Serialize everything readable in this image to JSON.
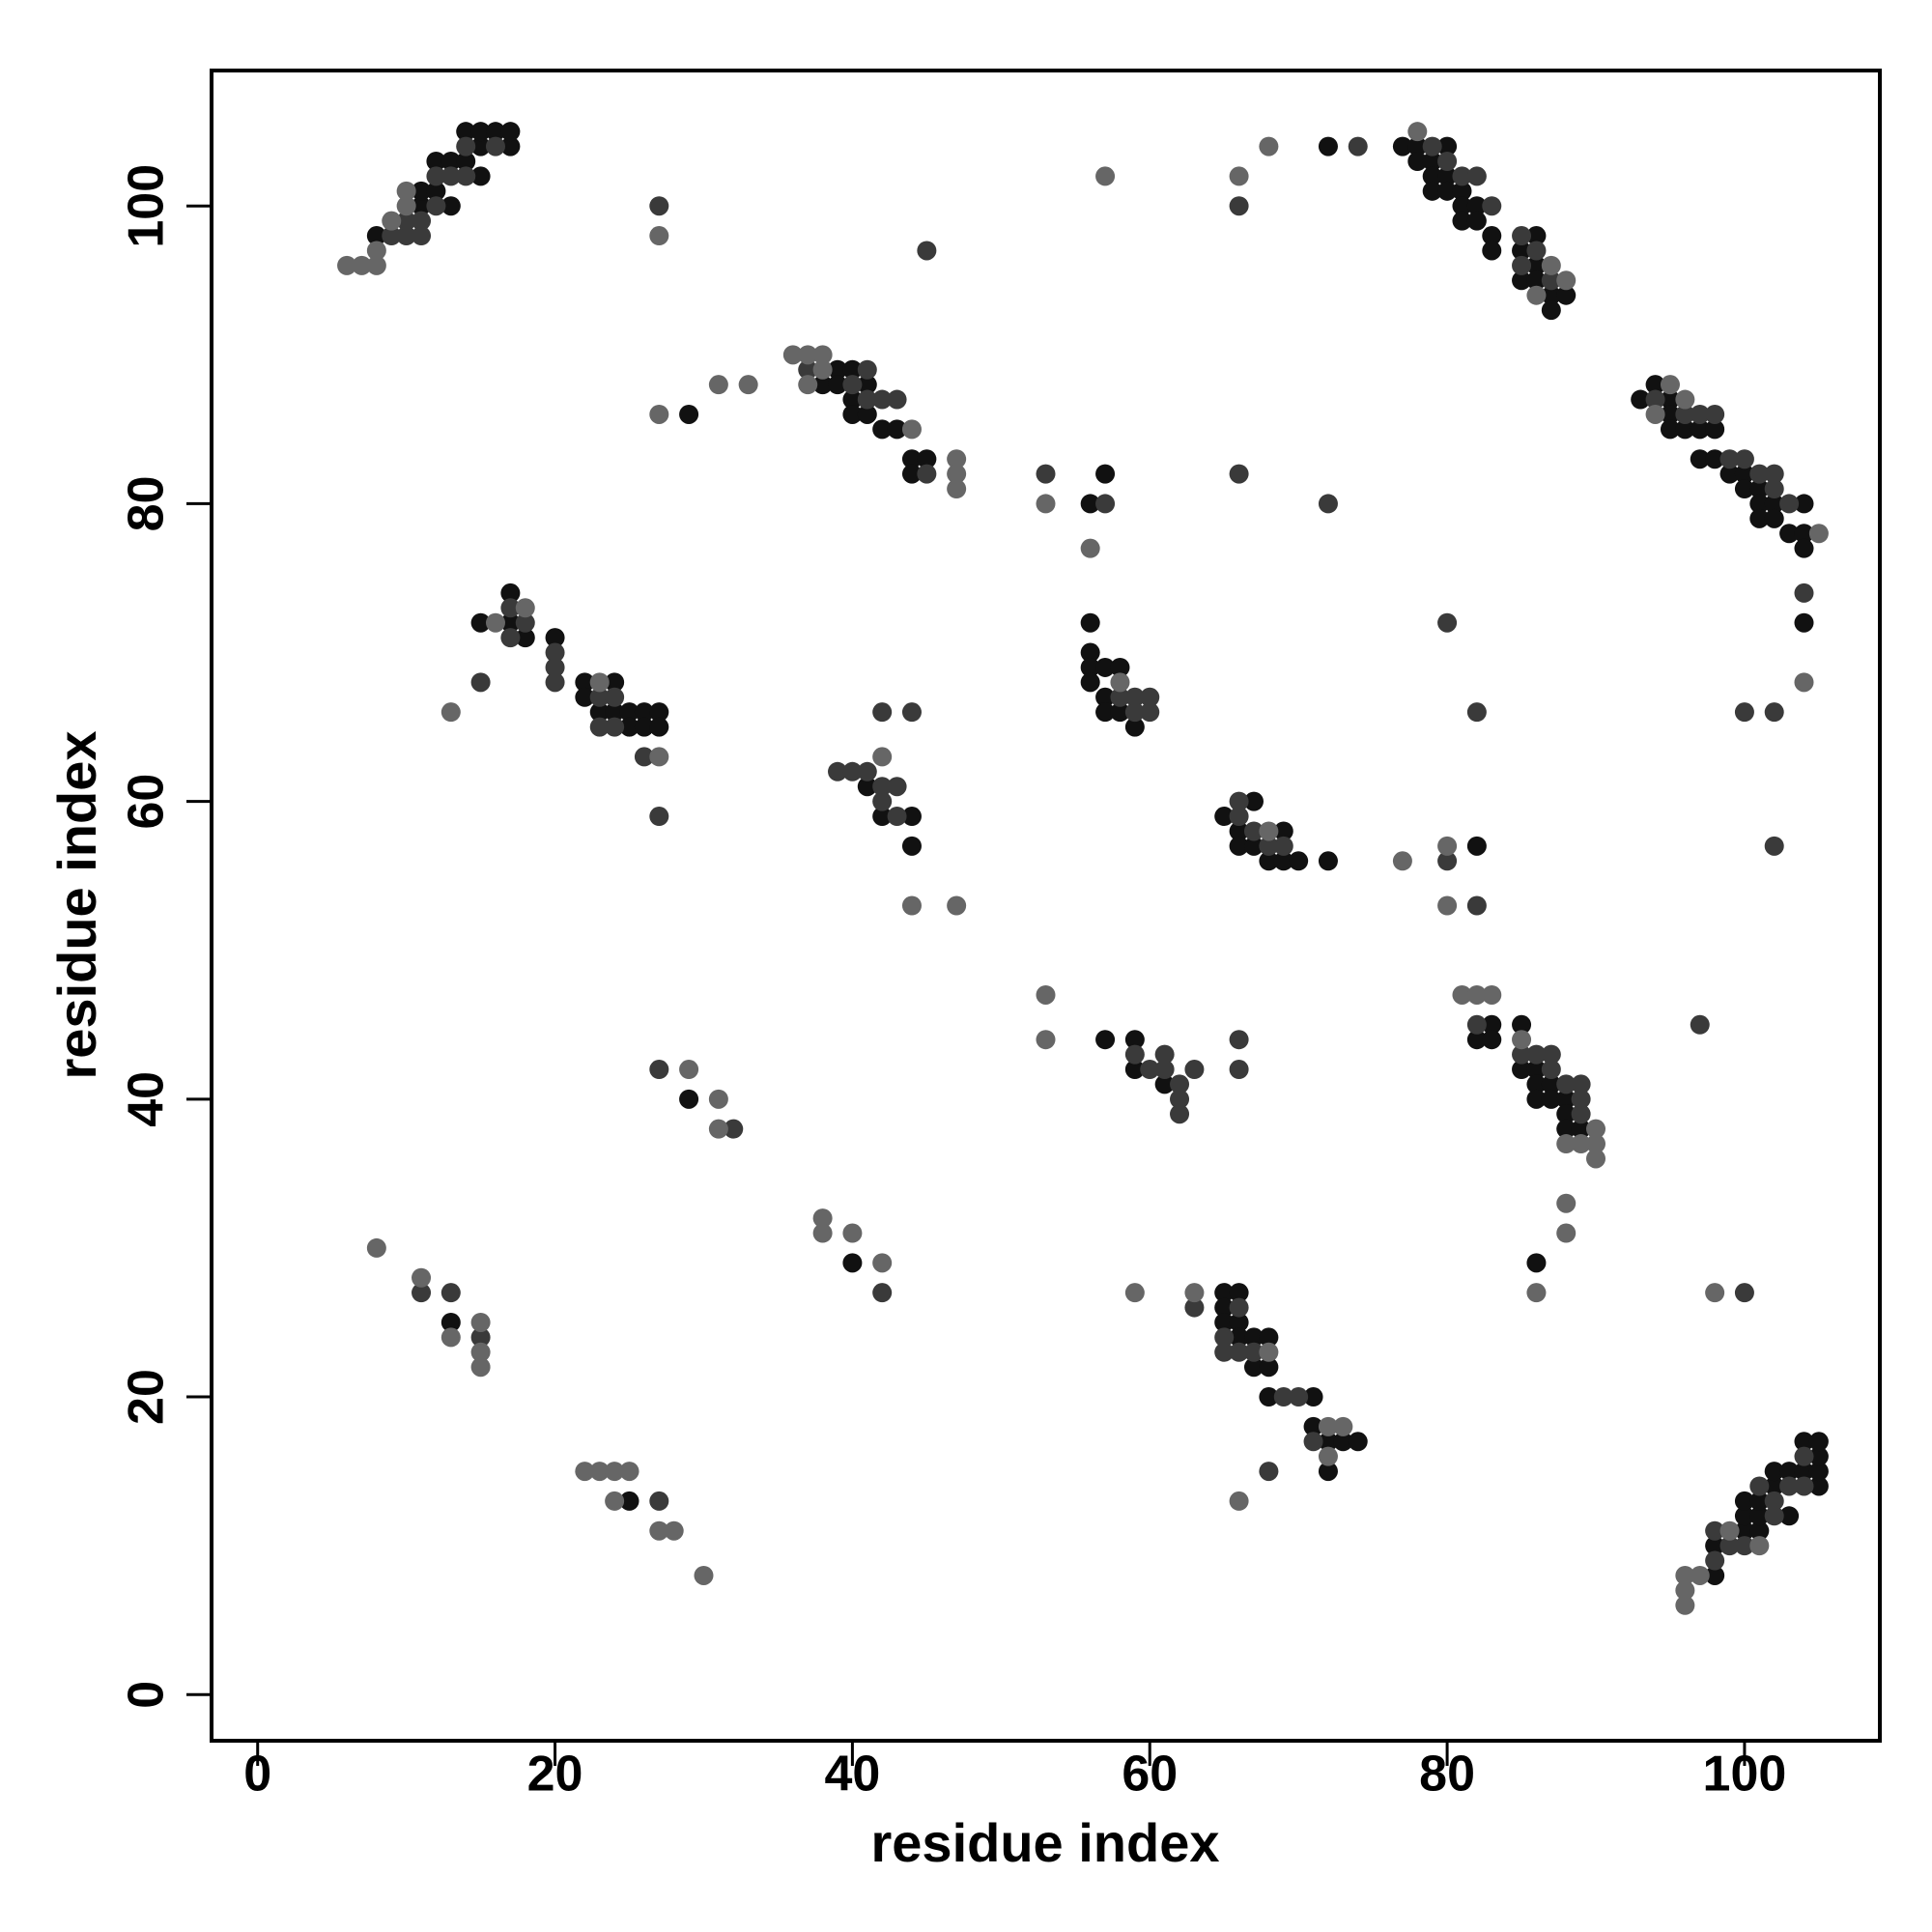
{
  "chart_data": {
    "type": "scatter",
    "xlabel": "residue index",
    "ylabel": "residue index",
    "xlim": [
      -3.1,
      109.1
    ],
    "ylim": [
      -3.1,
      109.1
    ],
    "xticks": [
      0,
      20,
      40,
      60,
      80,
      100
    ],
    "yticks": [
      0,
      20,
      40,
      60,
      80,
      100
    ],
    "series": [
      {
        "color": "#111111",
        "x": [
          8,
          11,
          13,
          11,
          12,
          15,
          12,
          13,
          14,
          15,
          17,
          14,
          15,
          16,
          17,
          72,
          77,
          78,
          78,
          79,
          80,
          79,
          80,
          79,
          80,
          81,
          81,
          82,
          81,
          82,
          83,
          86,
          83,
          85,
          86,
          85,
          86,
          87,
          88,
          87,
          39,
          40,
          38,
          39,
          41,
          40,
          40,
          41,
          42,
          43,
          44,
          45,
          44,
          29,
          93,
          95,
          94,
          95,
          95,
          96,
          97,
          98,
          97,
          98,
          99,
          100,
          100,
          101,
          101,
          102,
          104,
          101,
          102,
          103,
          104,
          104,
          56,
          57,
          104,
          17,
          15,
          17,
          18,
          20,
          22,
          24,
          22,
          23,
          24,
          25,
          26,
          27,
          25,
          26,
          27,
          41,
          42,
          44,
          44,
          56,
          56,
          56,
          57,
          58,
          56,
          57,
          57,
          58,
          59,
          65,
          67,
          66,
          69,
          66,
          67,
          68,
          69,
          70,
          72,
          82,
          57,
          59,
          59,
          61,
          83,
          85,
          82,
          83,
          85,
          86,
          86,
          87,
          86,
          87,
          88,
          88,
          88,
          89,
          86,
          29,
          40,
          13,
          25,
          65,
          66,
          65,
          65,
          66,
          66,
          67,
          68,
          67,
          68,
          68,
          71,
          71,
          72,
          73,
          74,
          72,
          98,
          98,
          100,
          101,
          100,
          101,
          103,
          100,
          101,
          102,
          105,
          102,
          103,
          104,
          105,
          105,
          104,
          105
        ],
        "y": [
          98,
          100,
          100,
          101,
          101,
          102,
          103,
          103,
          103,
          104,
          104,
          105,
          105,
          105,
          105,
          104,
          104,
          104,
          103,
          103,
          104,
          102,
          102,
          101,
          101,
          101,
          100,
          100,
          99,
          99,
          98,
          98,
          97,
          97,
          96,
          95,
          95,
          94,
          94,
          93,
          89,
          89,
          88,
          88,
          88,
          87,
          86,
          86,
          85,
          85,
          83,
          83,
          82,
          86,
          87,
          87,
          88,
          86,
          85,
          85,
          85,
          85,
          83,
          83,
          82,
          82,
          81,
          81,
          80,
          80,
          80,
          79,
          79,
          78,
          78,
          77,
          80,
          82,
          72,
          74,
          72,
          72,
          71,
          71,
          68,
          68,
          67,
          66,
          66,
          66,
          66,
          66,
          65,
          65,
          65,
          61,
          59,
          59,
          57,
          72,
          70,
          69,
          69,
          69,
          68,
          67,
          66,
          66,
          65,
          59,
          60,
          58,
          58,
          57,
          57,
          56,
          56,
          56,
          56,
          57,
          44,
          44,
          42,
          41,
          45,
          45,
          44,
          44,
          42,
          42,
          41,
          41,
          40,
          40,
          40,
          39,
          38,
          38,
          29,
          40,
          29,
          25,
          13,
          27,
          27,
          26,
          25,
          25,
          24,
          24,
          24,
          22,
          22,
          20,
          20,
          18,
          17,
          17,
          17,
          15,
          8,
          10,
          11,
          11,
          12,
          12,
          12,
          13,
          13,
          14,
          14,
          15,
          15,
          15,
          15,
          16,
          17,
          17
        ]
      },
      {
        "color": "#3a3a3a",
        "x": [
          9,
          10,
          11,
          10,
          11,
          12,
          12,
          13,
          14,
          14,
          16,
          27,
          45,
          66,
          74,
          79,
          80,
          81,
          82,
          83,
          85,
          86,
          85,
          87,
          37,
          41,
          40,
          41,
          42,
          43,
          45,
          94,
          96,
          97,
          98,
          99,
          100,
          101,
          102,
          102,
          103,
          53,
          57,
          66,
          72,
          104,
          80,
          82,
          100,
          102,
          102,
          17,
          18,
          17,
          20,
          20,
          15,
          20,
          23,
          24,
          23,
          24,
          26,
          27,
          42,
          44,
          39,
          40,
          41,
          42,
          43,
          42,
          43,
          58,
          59,
          60,
          59,
          60,
          66,
          66,
          67,
          68,
          69,
          80,
          82,
          59,
          60,
          61,
          61,
          62,
          62,
          62,
          63,
          66,
          66,
          82,
          85,
          86,
          87,
          87,
          88,
          89,
          89,
          89,
          97,
          100,
          27,
          32,
          42,
          11,
          13,
          15,
          27,
          63,
          66,
          65,
          65,
          66,
          67,
          69,
          70,
          71,
          68,
          98,
          98,
          99,
          100,
          102,
          102,
          101,
          103,
          104,
          104
        ],
        "y": [
          98,
          98,
          98,
          99,
          99,
          100,
          102,
          102,
          102,
          104,
          104,
          100,
          97,
          100,
          104,
          104,
          103,
          102,
          102,
          100,
          98,
          97,
          96,
          95,
          89,
          89,
          88,
          87,
          87,
          87,
          82,
          87,
          86,
          86,
          86,
          83,
          83,
          82,
          82,
          81,
          80,
          82,
          80,
          82,
          80,
          74,
          72,
          66,
          66,
          66,
          57,
          73,
          72,
          71,
          70,
          69,
          68,
          68,
          67,
          67,
          65,
          65,
          63,
          59,
          66,
          66,
          62,
          62,
          62,
          61,
          61,
          60,
          59,
          67,
          67,
          67,
          66,
          66,
          59,
          60,
          58,
          57,
          57,
          56,
          53,
          43,
          42,
          43,
          42,
          41,
          40,
          39,
          42,
          44,
          42,
          45,
          43,
          43,
          43,
          42,
          41,
          41,
          40,
          39,
          45,
          27,
          42,
          38,
          27,
          27,
          27,
          24,
          13,
          26,
          26,
          24,
          23,
          23,
          23,
          20,
          20,
          17,
          15,
          9,
          11,
          10,
          10,
          12,
          13,
          14,
          14,
          14,
          16
        ]
      },
      {
        "color": "#666666",
        "x": [
          6,
          7,
          8,
          8,
          9,
          10,
          10,
          27,
          57,
          66,
          68,
          78,
          87,
          88,
          86,
          36,
          37,
          38,
          38,
          37,
          44,
          47,
          47,
          47,
          27,
          31,
          33,
          95,
          94,
          96,
          105,
          53,
          56,
          104,
          18,
          16,
          13,
          23,
          27,
          42,
          44,
          47,
          58,
          68,
          77,
          80,
          80,
          53,
          53,
          81,
          82,
          83,
          85,
          90,
          88,
          89,
          90,
          90,
          88,
          88,
          86,
          98,
          29,
          31,
          31,
          38,
          38,
          40,
          42,
          8,
          11,
          13,
          15,
          15,
          15,
          22,
          23,
          24,
          25,
          24,
          27,
          28,
          30,
          59,
          63,
          68,
          72,
          73,
          72,
          66,
          96,
          97,
          96,
          96,
          99,
          101
        ],
        "y": [
          96,
          96,
          96,
          97,
          99,
          100,
          101,
          98,
          102,
          102,
          104,
          105,
          96,
          95,
          94,
          90,
          90,
          90,
          89,
          88,
          85,
          83,
          82,
          81,
          86,
          88,
          88,
          88,
          86,
          87,
          78,
          80,
          77,
          68,
          73,
          72,
          66,
          68,
          63,
          63,
          53,
          53,
          68,
          58,
          56,
          57,
          53,
          47,
          44,
          47,
          47,
          47,
          44,
          38,
          37,
          37,
          37,
          36,
          33,
          31,
          27,
          27,
          42,
          40,
          38,
          32,
          31,
          31,
          29,
          30,
          28,
          24,
          25,
          23,
          22,
          15,
          15,
          15,
          15,
          13,
          11,
          11,
          8,
          27,
          27,
          23,
          18,
          18,
          16,
          13,
          8,
          8,
          7,
          6,
          11,
          10
        ]
      }
    ]
  }
}
